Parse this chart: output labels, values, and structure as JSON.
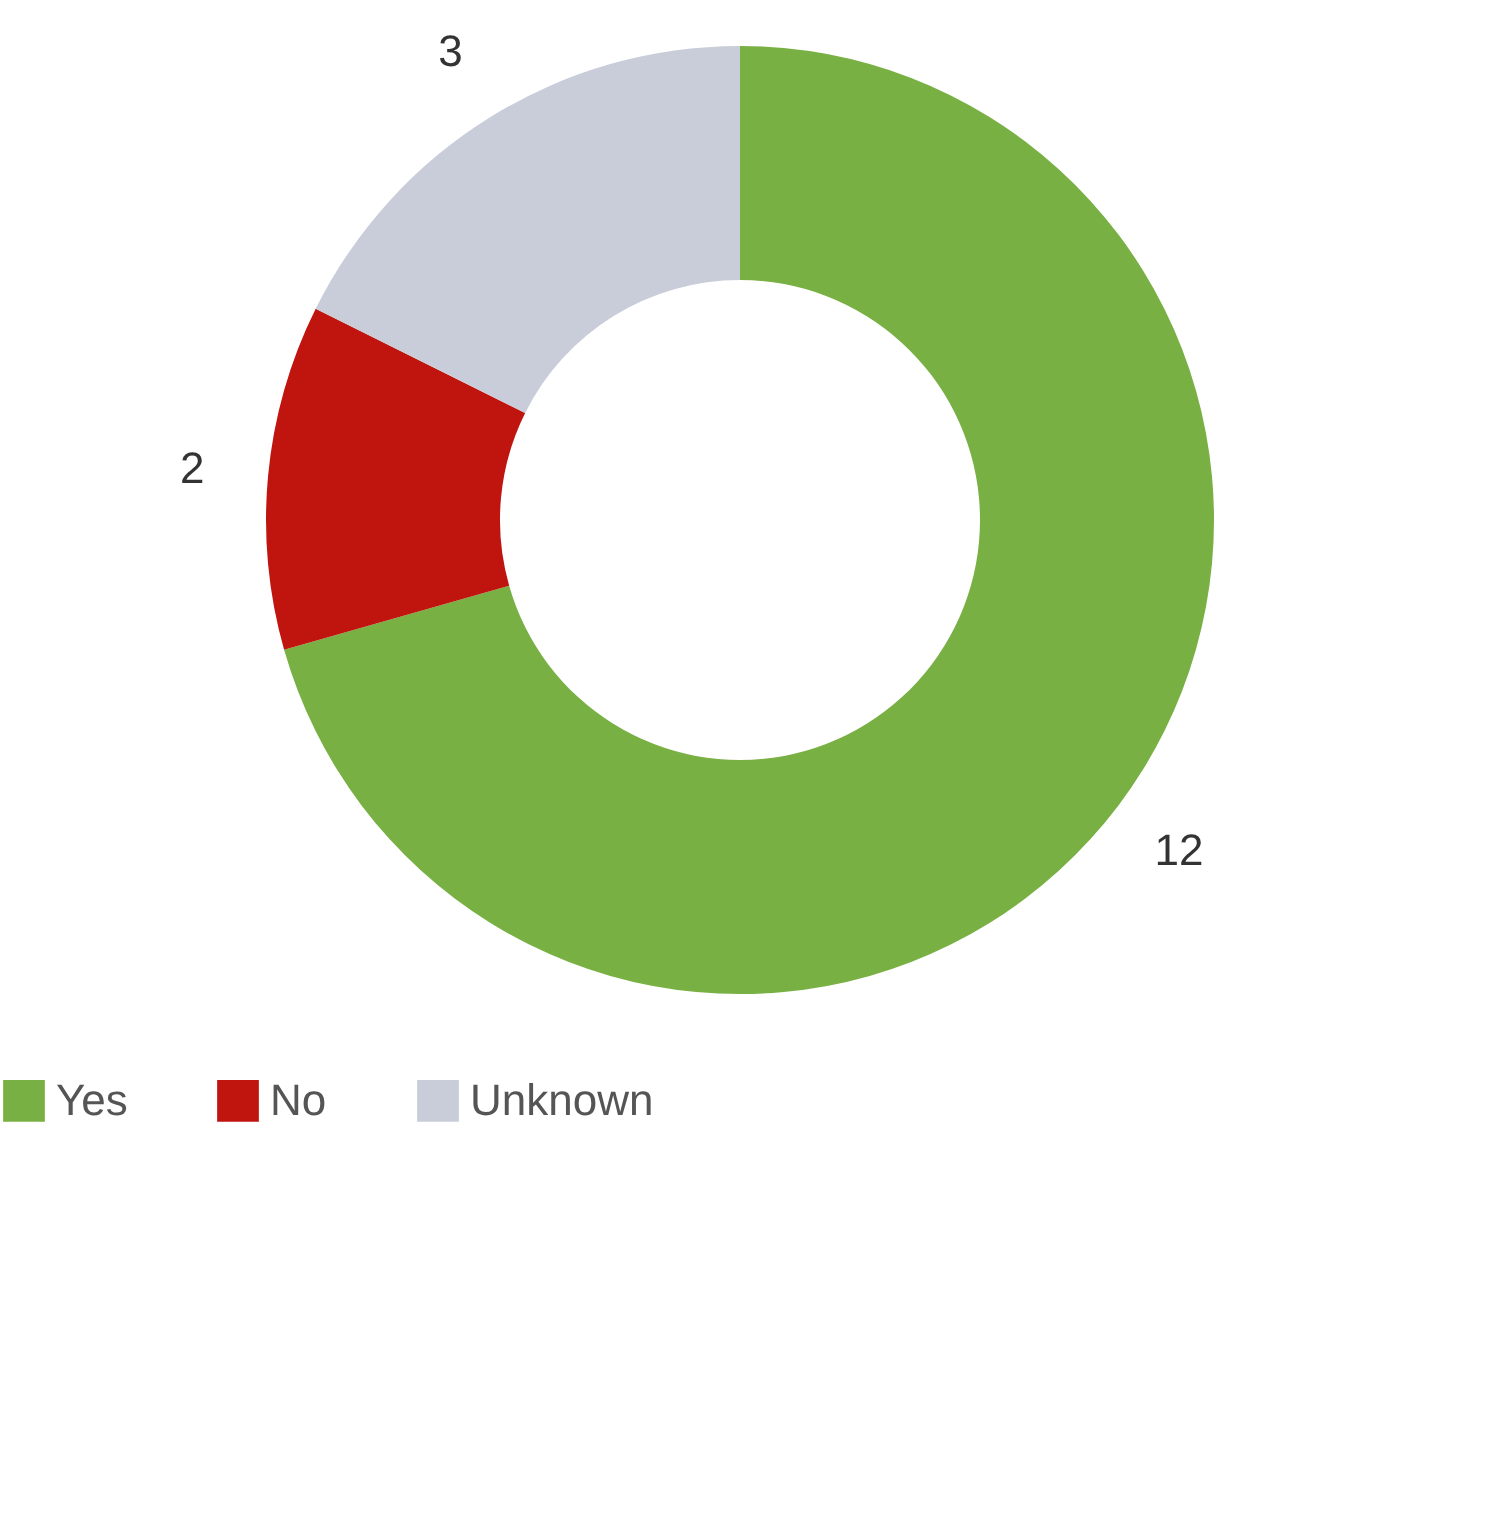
{
  "chart_data": {
    "type": "donut",
    "categories": [
      "Yes",
      "No",
      "Unknown"
    ],
    "values": [
      12,
      2,
      3
    ],
    "colors": [
      "#78b043",
      "#c0150f",
      "#c9ccd9"
    ],
    "data_labels": true,
    "legend": "bottom"
  }
}
